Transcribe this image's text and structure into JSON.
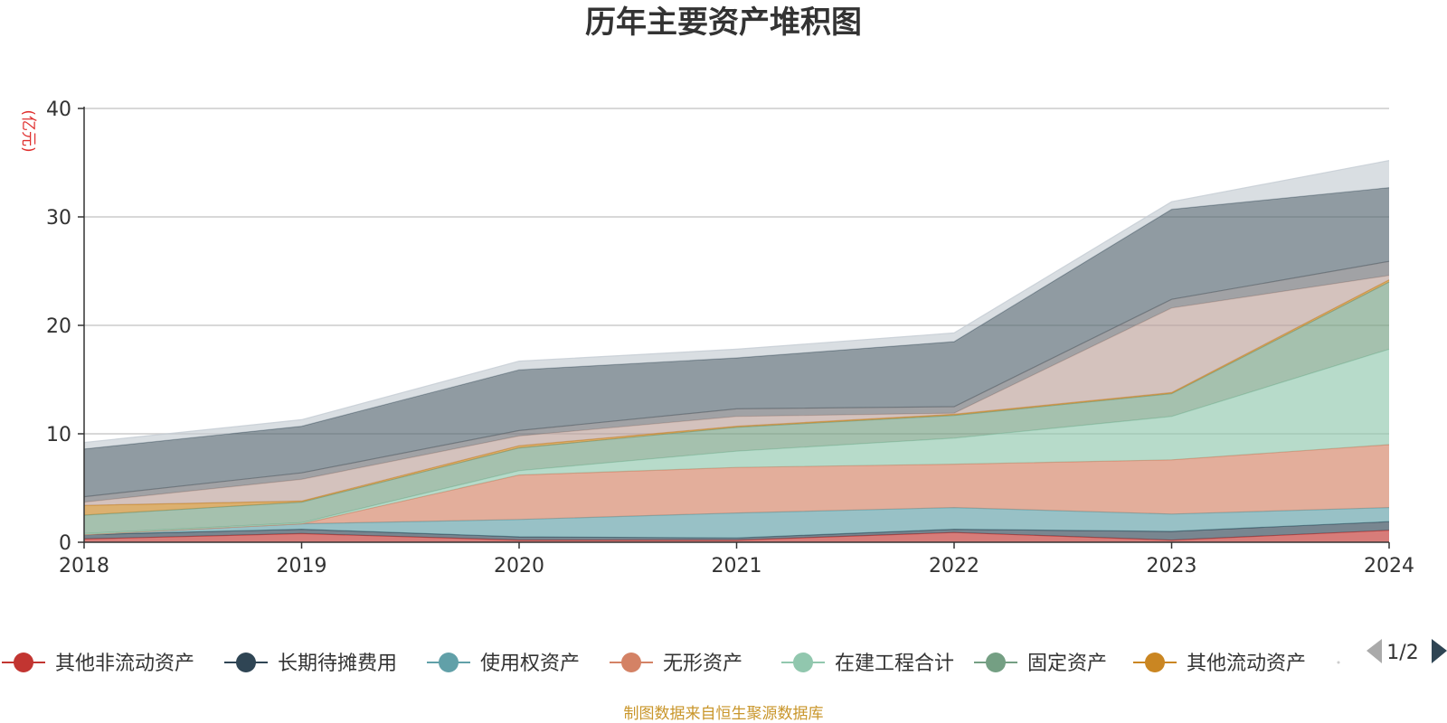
{
  "chart_data": {
    "type": "area",
    "stacked": true,
    "title": "历年主要资产堆积图",
    "unit_label": "(亿元)",
    "x": [
      "2018",
      "2019",
      "2020",
      "2021",
      "2022",
      "2023",
      "2024"
    ],
    "ylim": [
      0,
      40
    ],
    "yticks": [
      0,
      10,
      20,
      30,
      40
    ],
    "grid": true,
    "series": [
      {
        "name": "其他非流动资产",
        "color": "#c23531",
        "legend": true,
        "values": [
          0.3,
          0.8,
          0.2,
          0.2,
          0.9,
          0.2,
          1.1
        ]
      },
      {
        "name": "长期待摊费用",
        "color": "#2f4554",
        "legend": true,
        "values": [
          0.4,
          0.4,
          0.3,
          0.2,
          0.3,
          0.8,
          0.8
        ]
      },
      {
        "name": "使用权资产",
        "color": "#61a0a8",
        "legend": true,
        "values": [
          0.0,
          0.5,
          1.6,
          2.3,
          2.0,
          1.6,
          1.3
        ]
      },
      {
        "name": "无形资产",
        "color": "#d48265",
        "legend": true,
        "values": [
          0.0,
          0.0,
          4.1,
          4.2,
          4.0,
          5.0,
          5.8
        ]
      },
      {
        "name": "在建工程合计",
        "color": "#91c7ae",
        "legend": true,
        "values": [
          0.1,
          0.1,
          0.4,
          1.5,
          2.4,
          4.0,
          8.8
        ]
      },
      {
        "name": "固定资产",
        "color": "#749f83",
        "legend": true,
        "values": [
          1.7,
          1.9,
          2.1,
          2.2,
          2.1,
          2.1,
          6.2
        ]
      },
      {
        "name": "其他流动资产",
        "color": "#ca8622",
        "legend": true,
        "values": [
          0.9,
          0.1,
          0.2,
          0.1,
          0.1,
          0.1,
          0.2
        ]
      },
      {
        "name": "series-8",
        "color": "#bda29a",
        "legend": false,
        "values": [
          0.3,
          2.0,
          0.9,
          0.9,
          0.1,
          7.8,
          0.4
        ]
      },
      {
        "name": "series-9",
        "color": "#6e7074",
        "legend": false,
        "values": [
          0.5,
          0.6,
          0.5,
          0.7,
          0.6,
          0.8,
          1.3
        ]
      },
      {
        "name": "series-10",
        "color": "#546570",
        "legend": false,
        "values": [
          4.4,
          4.3,
          5.6,
          4.7,
          6.0,
          8.3,
          6.8
        ]
      },
      {
        "name": "series-11",
        "color": "#c4ccd3",
        "legend": false,
        "values": [
          0.6,
          0.6,
          0.8,
          0.8,
          0.8,
          0.7,
          2.5
        ]
      }
    ]
  },
  "legend": {
    "page_indicator": "1/2"
  },
  "footer": {
    "source": "制图数据来自恒生聚源数据库"
  }
}
